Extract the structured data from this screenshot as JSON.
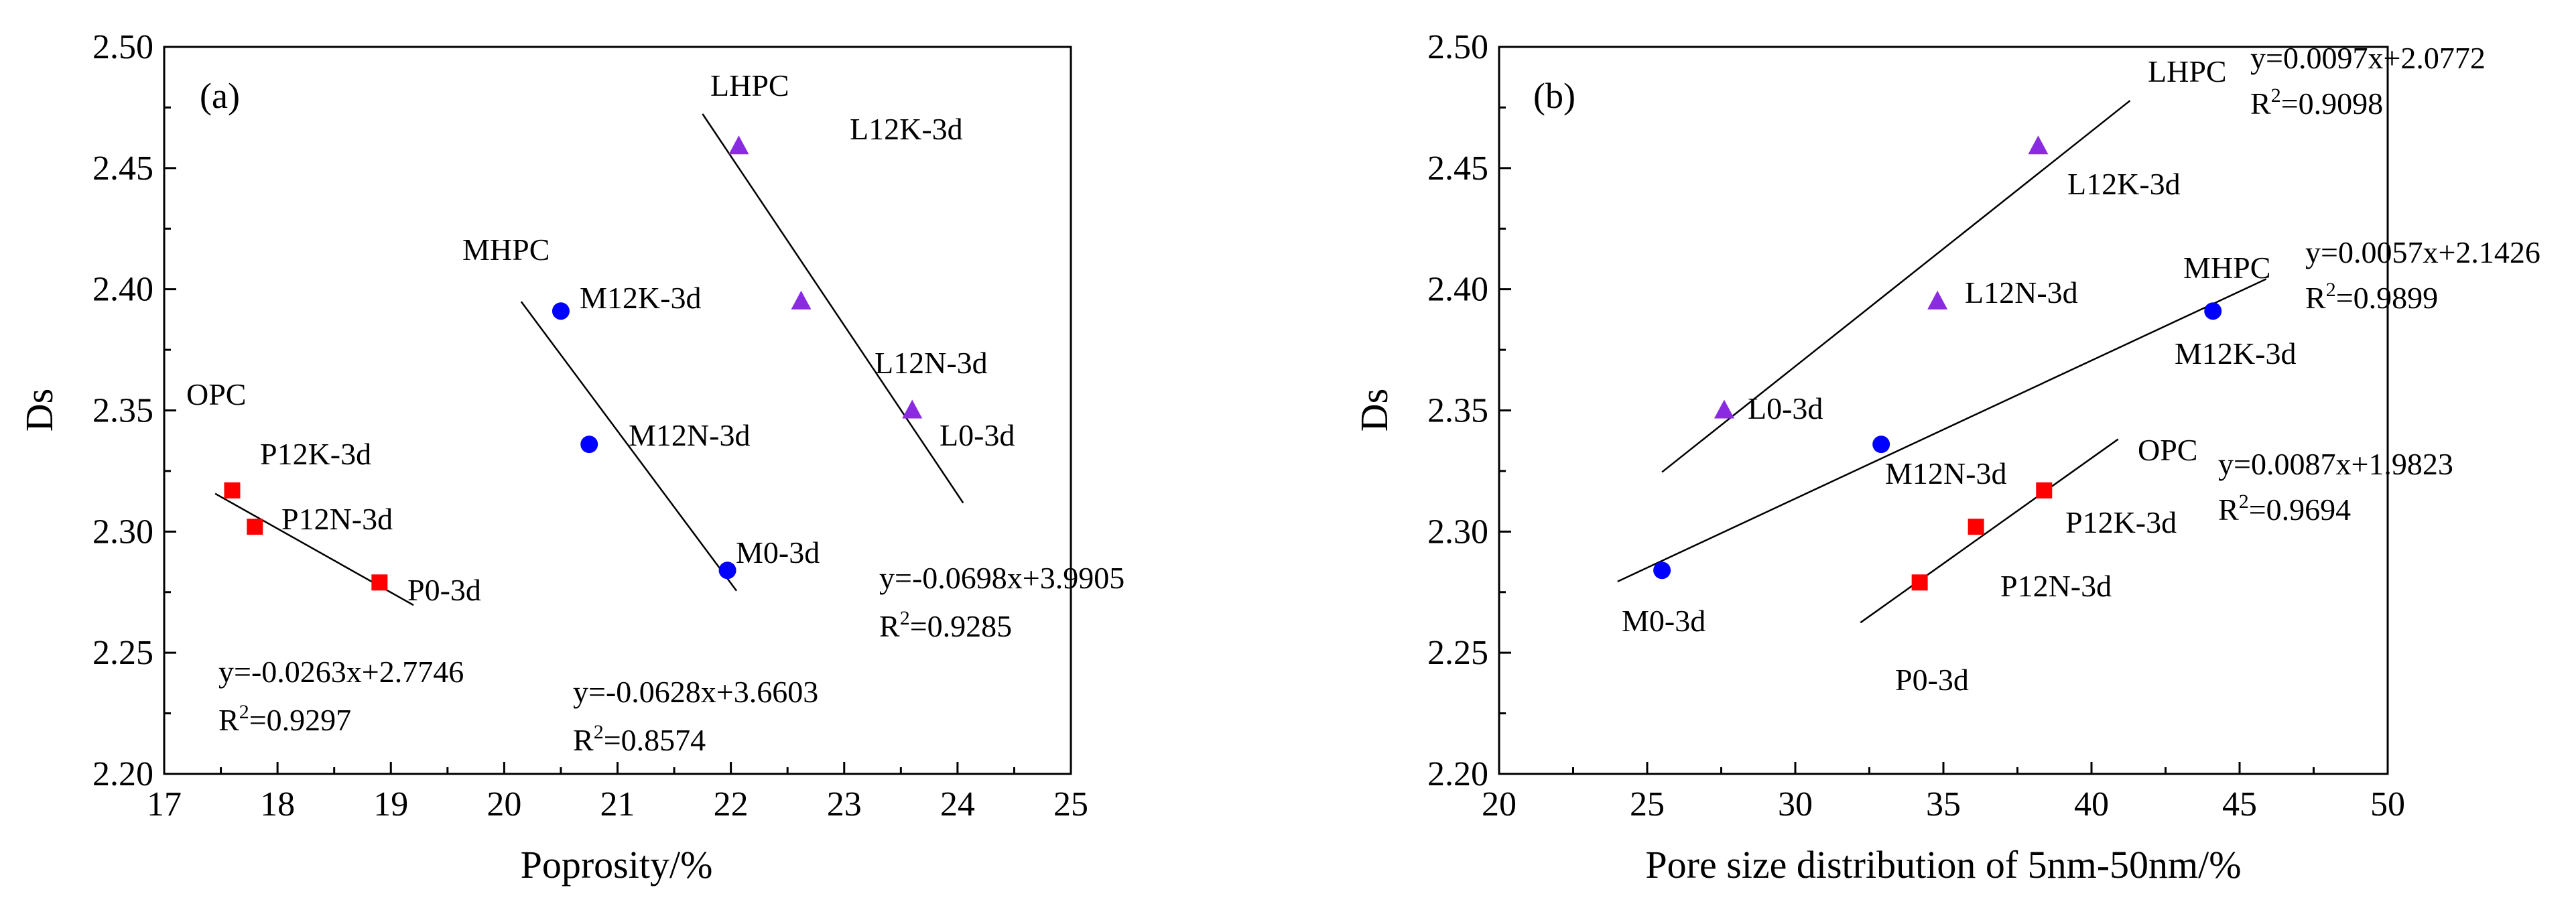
{
  "colors": {
    "opc": "#ff0000",
    "mhpc": "#0000ff",
    "lhpc": "#8a2be2",
    "axis": "#000000"
  },
  "chart_data": [
    {
      "type": "scatter",
      "panel_label": "(a)",
      "xlabel": "Poprosity/%",
      "ylabel": "Ds",
      "xlim": [
        17,
        25
      ],
      "ylim": [
        2.2,
        2.5
      ],
      "x_ticks": [
        "17",
        "18",
        "19",
        "20",
        "21",
        "22",
        "23",
        "24",
        "25"
      ],
      "y_ticks": [
        "2.20",
        "2.25",
        "2.30",
        "2.35",
        "2.40",
        "2.45",
        "2.50"
      ],
      "series": [
        {
          "name": "OPC",
          "marker": "square",
          "color_key": "opc",
          "points": [
            {
              "label": "P12K-3d",
              "x": 17.6,
              "y": 2.317
            },
            {
              "label": "P12N-3d",
              "x": 17.8,
              "y": 2.302
            },
            {
              "label": "P0-3d",
              "x": 18.9,
              "y": 2.279
            }
          ],
          "fit": {
            "x_range": [
              17.45,
              19.2
            ],
            "slope": -0.0263,
            "intercept": 2.7746
          },
          "equation": "y=-0.0263x+2.7746",
          "r2_prefix": "R",
          "r2_exp": "2",
          "r2_value": "=0.9297"
        },
        {
          "name": "MHPC",
          "marker": "circle",
          "color_key": "mhpc",
          "points": [
            {
              "label": "M12K-3d",
              "x": 20.5,
              "y": 2.391
            },
            {
              "label": "M12N-3d",
              "x": 20.75,
              "y": 2.336
            },
            {
              "label": "M0-3d",
              "x": 21.97,
              "y": 2.284
            }
          ],
          "fit": {
            "x_range": [
              20.15,
              22.05
            ],
            "slope": -0.0628,
            "intercept": 3.6603
          },
          "equation": "y=-0.0628x+3.6603",
          "r2_prefix": "R",
          "r2_exp": "2",
          "r2_value": "=0.8574"
        },
        {
          "name": "LHPC",
          "marker": "triangle",
          "color_key": "lhpc",
          "points": [
            {
              "label": "L12K-3d",
              "x": 22.07,
              "y": 2.459
            },
            {
              "label": "L12N-3d",
              "x": 22.62,
              "y": 2.395
            },
            {
              "label": "L0-3d",
              "x": 23.6,
              "y": 2.35
            }
          ],
          "fit": {
            "x_range": [
              21.75,
              24.05
            ],
            "slope": -0.0698,
            "intercept": 3.9905
          },
          "equation": "y=-0.0698x+3.9905",
          "r2_prefix": "R",
          "r2_exp": "2",
          "r2_value": "=0.9285"
        }
      ]
    },
    {
      "type": "scatter",
      "panel_label": "(b)",
      "xlabel": "Pore size distribution of 5nm-50nm/%",
      "ylabel": "Ds",
      "xlim": [
        20,
        50
      ],
      "ylim": [
        2.2,
        2.5
      ],
      "x_ticks": [
        "20",
        "25",
        "30",
        "35",
        "40",
        "45",
        "50"
      ],
      "y_ticks": [
        "2.20",
        "2.25",
        "2.30",
        "2.35",
        "2.40",
        "2.45",
        "2.50"
      ],
      "series": [
        {
          "name": "OPC",
          "marker": "square",
          "color_key": "opc",
          "points": [
            {
              "label": "P12K-3d",
              "x": 38.4,
              "y": 2.317
            },
            {
              "label": "P12N-3d",
              "x": 36.1,
              "y": 2.302
            },
            {
              "label": "P0-3d",
              "x": 34.2,
              "y": 2.279
            }
          ],
          "fit": {
            "x_range": [
              32.2,
              40.9
            ],
            "slope": 0.0087,
            "intercept": 1.9823
          },
          "equation": "y=0.0087x+1.9823",
          "r2_prefix": "R",
          "r2_exp": "2",
          "r2_value": "=0.9694"
        },
        {
          "name": "MHPC",
          "marker": "circle",
          "color_key": "mhpc",
          "points": [
            {
              "label": "M12K-3d",
              "x": 44.1,
              "y": 2.391
            },
            {
              "label": "M12N-3d",
              "x": 32.9,
              "y": 2.336
            },
            {
              "label": "M0-3d",
              "x": 25.5,
              "y": 2.284
            }
          ],
          "fit": {
            "x_range": [
              24.0,
              45.9
            ],
            "slope": 0.0057,
            "intercept": 2.1426
          },
          "equation": "y=0.0057x+2.1426",
          "r2_prefix": "R",
          "r2_exp": "2",
          "r2_value": "=0.9899"
        },
        {
          "name": "LHPC",
          "marker": "triangle",
          "color_key": "lhpc",
          "points": [
            {
              "label": "L12K-3d",
              "x": 38.2,
              "y": 2.459
            },
            {
              "label": "L12N-3d",
              "x": 34.8,
              "y": 2.395
            },
            {
              "label": "L0-3d",
              "x": 27.6,
              "y": 2.35
            }
          ],
          "fit": {
            "x_range": [
              25.5,
              41.3
            ],
            "slope": 0.0097,
            "intercept": 2.0772
          },
          "equation": "y=0.0097x+2.0772",
          "r2_prefix": "R",
          "r2_exp": "2",
          "r2_value": "=0.9098"
        }
      ]
    }
  ]
}
